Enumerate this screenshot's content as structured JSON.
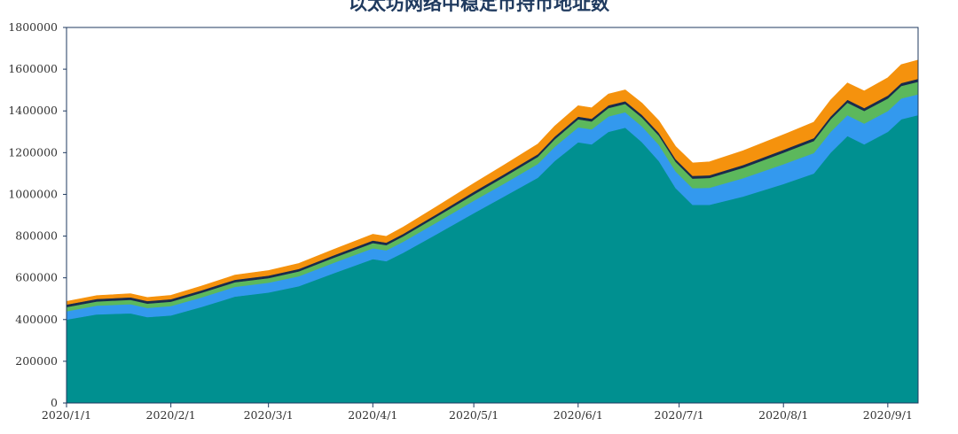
{
  "chart_data": {
    "type": "area",
    "title": "以太坊网络中稳定币持币地址数",
    "xlabel": "",
    "ylabel": "",
    "ylim": [
      0,
      1800000
    ],
    "y_ticks": [
      "0",
      "200000",
      "400000",
      "600000",
      "800000",
      "1000000",
      "1200000",
      "1400000",
      "1600000",
      "1800000"
    ],
    "x_tick_labels": [
      "2020/1/1",
      "2020/2/1",
      "2020/3/1",
      "2020/4/1",
      "2020/5/1",
      "2020/6/1",
      "2020/7/1",
      "2020/8/1",
      "2020/9/1"
    ],
    "x_tick_dates": [
      "2020-01-01",
      "2020-02-01",
      "2020-03-01",
      "2020-04-01",
      "2020-05-01",
      "2020-06-01",
      "2020-07-01",
      "2020-08-01",
      "2020-09-01"
    ],
    "x_range": [
      "2020-01-01",
      "2020-09-10"
    ],
    "stacked": true,
    "grid": false,
    "legend": "none",
    "x": [
      "2020-01-01",
      "2020-01-10",
      "2020-01-20",
      "2020-01-25",
      "2020-02-01",
      "2020-02-10",
      "2020-02-20",
      "2020-03-01",
      "2020-03-10",
      "2020-03-20",
      "2020-04-01",
      "2020-04-05",
      "2020-04-10",
      "2020-04-20",
      "2020-05-01",
      "2020-05-10",
      "2020-05-20",
      "2020-05-25",
      "2020-06-01",
      "2020-06-05",
      "2020-06-10",
      "2020-06-15",
      "2020-06-20",
      "2020-06-25",
      "2020-06-30",
      "2020-07-05",
      "2020-07-10",
      "2020-07-20",
      "2020-08-01",
      "2020-08-10",
      "2020-08-15",
      "2020-08-20",
      "2020-08-25",
      "2020-09-01",
      "2020-09-05",
      "2020-09-10"
    ],
    "series": [
      {
        "color": "#009090",
        "values": [
          400000,
          425000,
          430000,
          412000,
          420000,
          460000,
          510000,
          530000,
          560000,
          620000,
          690000,
          680000,
          720000,
          810000,
          910000,
          990000,
          1080000,
          1160000,
          1250000,
          1240000,
          1300000,
          1320000,
          1250000,
          1160000,
          1030000,
          950000,
          950000,
          990000,
          1050000,
          1100000,
          1200000,
          1280000,
          1240000,
          1300000,
          1360000,
          1380000
        ]
      },
      {
        "color": "#3399ee",
        "values": [
          40000,
          42000,
          44000,
          44000,
          45000,
          46000,
          47000,
          47000,
          48000,
          50000,
          52000,
          52000,
          53000,
          56000,
          60000,
          62000,
          66000,
          68000,
          72000,
          72000,
          74000,
          74000,
          76000,
          78000,
          80000,
          80000,
          82000,
          88000,
          95000,
          98000,
          100000,
          100000,
          100000,
          100000,
          100000,
          100000
        ]
      },
      {
        "color": "#5cb85c",
        "values": [
          20000,
          20000,
          21000,
          21000,
          21000,
          22000,
          22000,
          22000,
          23000,
          24000,
          25000,
          25000,
          26000,
          28000,
          30000,
          32000,
          34000,
          36000,
          38000,
          38000,
          40000,
          40000,
          42000,
          44000,
          46000,
          46000,
          47000,
          50000,
          55000,
          58000,
          60000,
          60000,
          60000,
          60000,
          60000,
          60000
        ]
      },
      {
        "color": "#1a2b4c",
        "values": [
          12000,
          12000,
          12000,
          12000,
          12000,
          12000,
          12000,
          12000,
          12000,
          12000,
          12000,
          12000,
          12000,
          12000,
          13000,
          13000,
          13000,
          13000,
          13000,
          13000,
          13000,
          13000,
          13000,
          13000,
          13000,
          13000,
          13000,
          13000,
          14000,
          14000,
          14000,
          14000,
          14000,
          14000,
          14000,
          14000
        ]
      },
      {
        "color": "#f5920d",
        "values": [
          15000,
          16000,
          17000,
          17000,
          18000,
          20000,
          22000,
          24000,
          26000,
          28000,
          30000,
          30000,
          32000,
          36000,
          40000,
          44000,
          48000,
          50000,
          52000,
          52000,
          54000,
          54000,
          56000,
          58000,
          60000,
          62000,
          64000,
          68000,
          72000,
          76000,
          78000,
          80000,
          82000,
          85000,
          88000,
          90000
        ]
      }
    ]
  }
}
